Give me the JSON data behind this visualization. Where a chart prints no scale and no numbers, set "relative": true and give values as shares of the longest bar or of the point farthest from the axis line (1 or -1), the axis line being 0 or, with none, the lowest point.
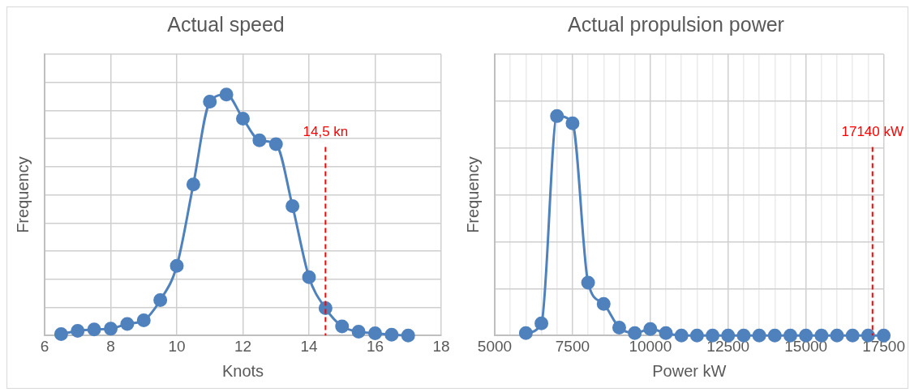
{
  "chart_data": [
    {
      "type": "line",
      "title": "Actual speed",
      "xlabel": "Knots",
      "ylabel": "Frequency",
      "relative": true,
      "tick_labels": "x",
      "grid": true,
      "legend": false,
      "marker": "circle",
      "line_style": "solid",
      "x": [
        6.5,
        7,
        7.5,
        8,
        8.5,
        9,
        9.5,
        10,
        10.5,
        11,
        11.5,
        12,
        12.5,
        13,
        13.5,
        14,
        14.5,
        15,
        15.5,
        16,
        16.5,
        17
      ],
      "series": [
        {
          "color": "#4f81bd",
          "values": [
            0.006,
            0.019,
            0.025,
            0.028,
            0.048,
            0.063,
            0.147,
            0.289,
            0.627,
            0.97,
            1,
            0.9,
            0.81,
            0.794,
            0.537,
            0.242,
            0.113,
            0.038,
            0.016,
            0.009,
            0.003,
            0
          ]
        }
      ],
      "xlim": [
        6,
        18
      ],
      "xticks": [
        6,
        8,
        10,
        12,
        14,
        16,
        18
      ],
      "ref_lines": [
        {
          "axis": "x",
          "value": 14.5,
          "label": "14,5 kn",
          "color": "#ff0000",
          "line_style": "dashed"
        }
      ]
    },
    {
      "type": "line",
      "title": "Actual propulsion power",
      "xlabel": "Power kW",
      "ylabel": "Frequency",
      "relative": true,
      "tick_labels": "x",
      "grid": true,
      "legend": false,
      "marker": "circle",
      "line_style": "solid",
      "x": [
        6000,
        6500,
        7000,
        7500,
        8000,
        8500,
        9000,
        9500,
        10000,
        10500,
        11000,
        11500,
        12000,
        12500,
        13000,
        13500,
        14000,
        14500,
        15000,
        15500,
        16000,
        16500,
        17000,
        17500
      ],
      "series": [
        {
          "color": "#4f81bd",
          "values": [
            0.011,
            0.055,
            1,
            0.967,
            0.241,
            0.144,
            0.036,
            0.011,
            0.029,
            0.011,
            0,
            0,
            0,
            0,
            0,
            0,
            0,
            0,
            0,
            0,
            0,
            0,
            0,
            0
          ]
        }
      ],
      "xlim": [
        5000,
        17500
      ],
      "xticks": [
        5000,
        {
          "value": 5500,
          "label": null
        },
        {
          "value": 6000,
          "label": null
        },
        {
          "value": 6500,
          "label": null
        },
        {
          "value": 7000,
          "label": null
        },
        7500,
        {
          "value": 8000,
          "label": null
        },
        {
          "value": 8500,
          "label": null
        },
        {
          "value": 9000,
          "label": null
        },
        {
          "value": 9500,
          "label": null
        },
        10000,
        {
          "value": 10500,
          "label": null
        },
        {
          "value": 11000,
          "label": null
        },
        {
          "value": 11500,
          "label": null
        },
        {
          "value": 12000,
          "label": null
        },
        12500,
        {
          "value": 13000,
          "label": null
        },
        {
          "value": 13500,
          "label": null
        },
        {
          "value": 14000,
          "label": null
        },
        {
          "value": 14500,
          "label": null
        },
        15000,
        {
          "value": 15500,
          "label": null
        },
        {
          "value": 16000,
          "label": null
        },
        {
          "value": 16500,
          "label": null
        },
        {
          "value": 17000,
          "label": null
        },
        17500
      ],
      "ref_lines": [
        {
          "axis": "x",
          "value": 17140,
          "label": "17140 kW",
          "color": "#ff0000",
          "line_style": "dashed"
        }
      ]
    }
  ]
}
